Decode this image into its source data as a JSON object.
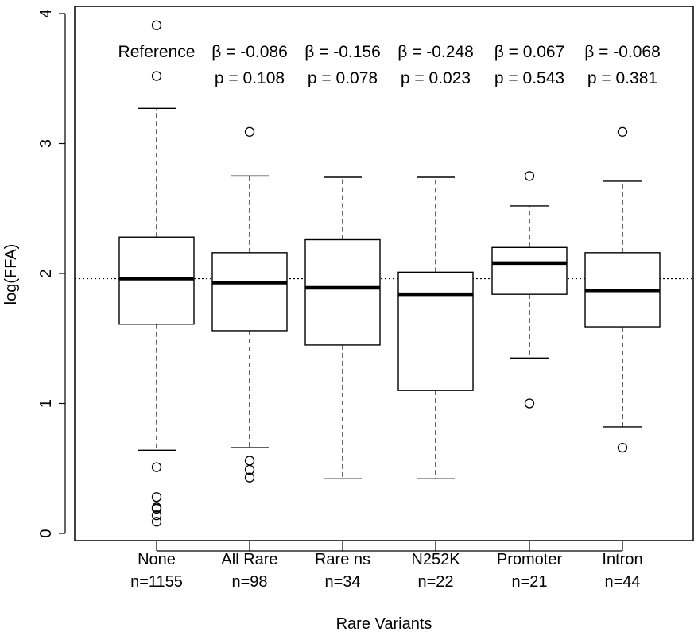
{
  "chart_data": {
    "type": "box",
    "title": "",
    "xlabel": "Rare Variants",
    "ylabel": "log(FFA)",
    "ylim": [
      0,
      4
    ],
    "yticks": [
      "0",
      "1",
      "2",
      "3",
      "4"
    ],
    "reference_line": 1.96,
    "categories": [
      {
        "name": "None",
        "n_label": "n=1155",
        "annot_top": "Reference",
        "annot_bottom": "",
        "whisker_low": 0.64,
        "q1": 1.61,
        "median": 1.96,
        "q3": 2.28,
        "whisker_high": 3.27,
        "outliers": [
          3.91,
          3.52,
          0.51,
          0.28,
          0.2,
          0.19,
          0.14,
          0.09
        ]
      },
      {
        "name": "All Rare",
        "n_label": "n=98",
        "annot_top": "β = -0.086",
        "annot_bottom": "p = 0.108",
        "whisker_low": 0.66,
        "q1": 1.56,
        "median": 1.93,
        "q3": 2.16,
        "whisker_high": 2.75,
        "outliers": [
          3.09,
          0.56,
          0.49,
          0.43
        ]
      },
      {
        "name": "Rare ns",
        "n_label": "n=34",
        "annot_top": "β = -0.156",
        "annot_bottom": "p = 0.078",
        "whisker_low": 0.42,
        "q1": 1.45,
        "median": 1.89,
        "q3": 2.26,
        "whisker_high": 2.74,
        "outliers": []
      },
      {
        "name": "N252K",
        "n_label": "n=22",
        "annot_top": "β = -0.248",
        "annot_bottom": "p = 0.023",
        "whisker_low": 0.42,
        "q1": 1.1,
        "median": 1.84,
        "q3": 2.01,
        "whisker_high": 2.74,
        "outliers": []
      },
      {
        "name": "Promoter",
        "n_label": "n=21",
        "annot_top": "β = 0.067",
        "annot_bottom": "p = 0.543",
        "whisker_low": 1.35,
        "q1": 1.84,
        "median": 2.08,
        "q3": 2.2,
        "whisker_high": 2.52,
        "outliers": [
          2.75,
          1.0
        ]
      },
      {
        "name": "Intron",
        "n_label": "n=44",
        "annot_top": "β = -0.068",
        "annot_bottom": "p = 0.381",
        "whisker_low": 0.82,
        "q1": 1.59,
        "median": 1.87,
        "q3": 2.16,
        "whisker_high": 2.71,
        "outliers": [
          3.09,
          0.66
        ]
      }
    ]
  }
}
